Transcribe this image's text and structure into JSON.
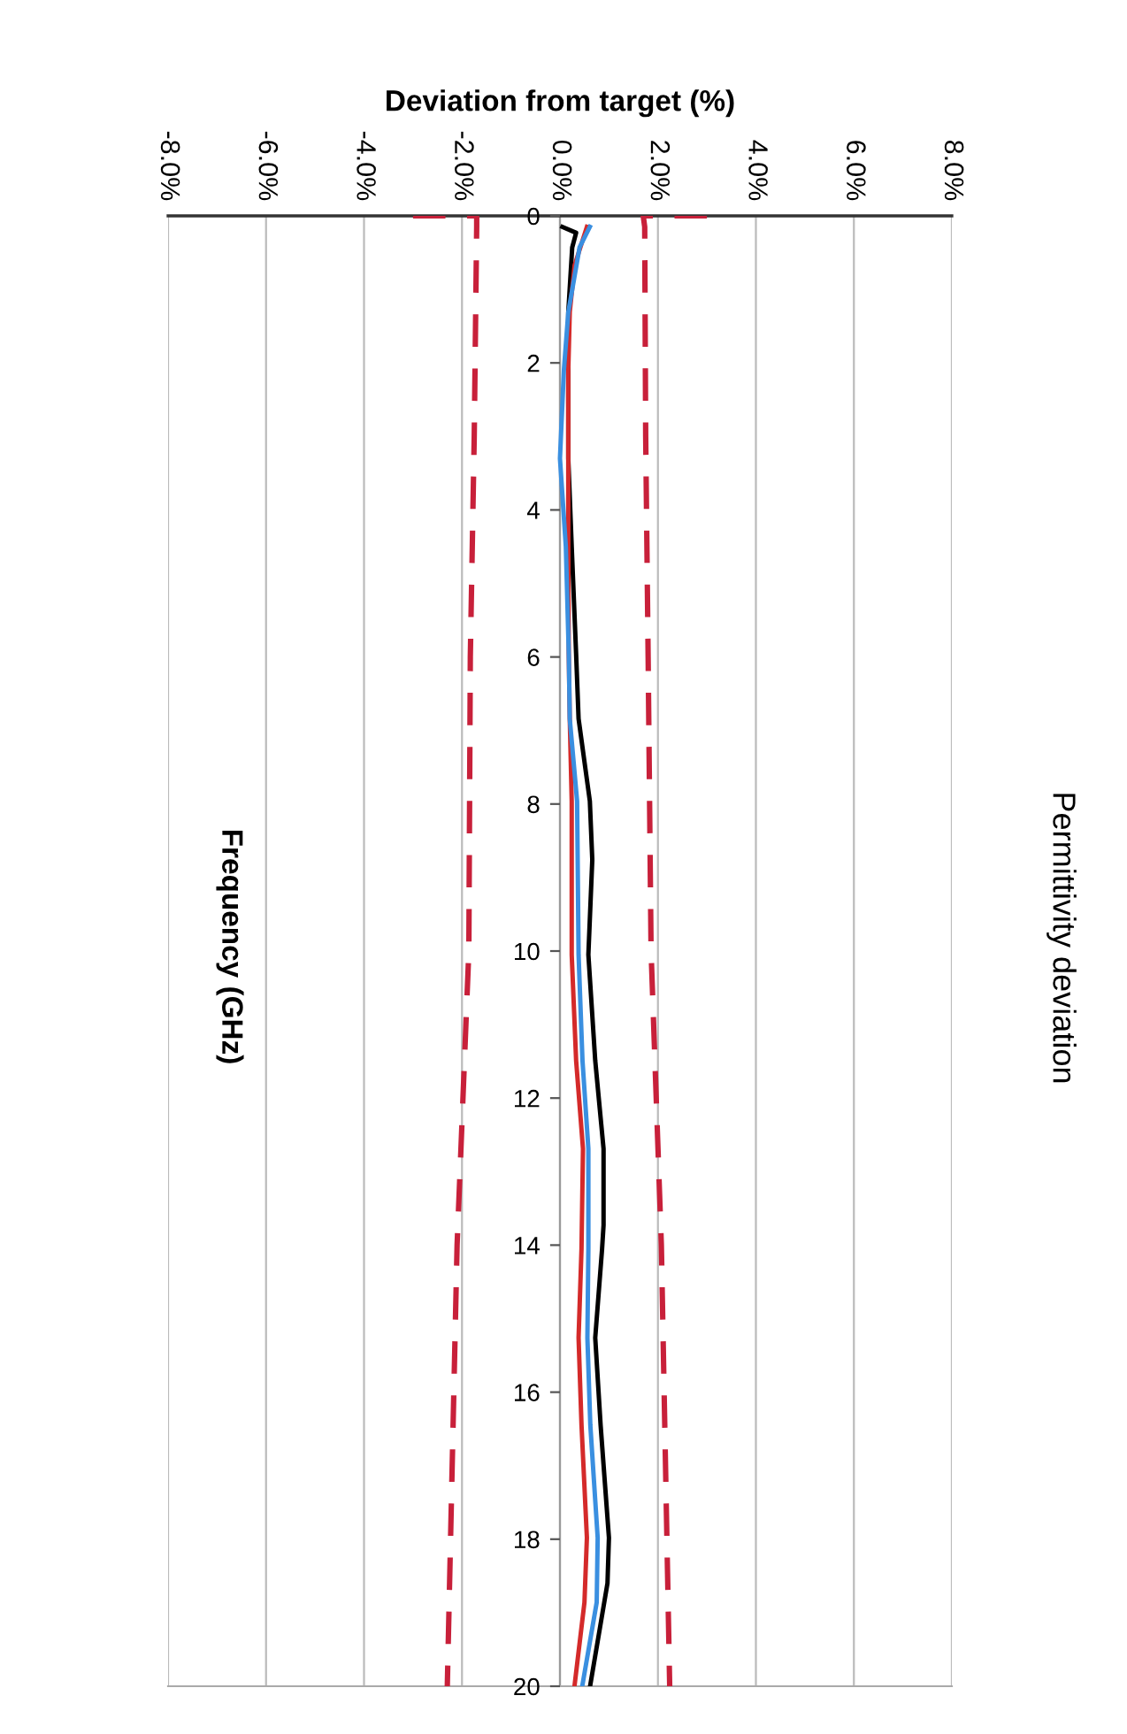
{
  "chart_data": {
    "type": "line",
    "title": "Permittivity deviation",
    "xlabel": "Deviation from target (%)",
    "ylabel": "Frequency (GHz)",
    "xlim": [
      -8,
      8
    ],
    "xticks": [
      {
        "value": -8,
        "label": "-8.0%"
      },
      {
        "value": -6,
        "label": "-6.0%"
      },
      {
        "value": -4,
        "label": "-4.0%"
      },
      {
        "value": -2,
        "label": "-2.0%"
      },
      {
        "value": 0,
        "label": "0.0%"
      },
      {
        "value": 2,
        "label": "2.0%"
      },
      {
        "value": 4,
        "label": "4.0%"
      },
      {
        "value": 6,
        "label": "6.0%"
      },
      {
        "value": 8,
        "label": "8.0%"
      }
    ],
    "ylim": [
      20,
      0
    ],
    "yticks": [
      0,
      2,
      4,
      6,
      8,
      10,
      12,
      14,
      16,
      18,
      20
    ],
    "grid": "x",
    "marker": "none",
    "series": [
      {
        "color": "#c8203a",
        "line_style": "dashed",
        "values": [
          0,
          0,
          0.15,
          3,
          6,
          10,
          14,
          20
        ],
        "x": [
          -3.0,
          -1.7,
          -1.7,
          -1.75,
          -1.83,
          -1.86,
          -2.1,
          -2.3
        ]
      },
      {
        "color": "#c8203a",
        "line_style": "dashed",
        "values": [
          0,
          0,
          0.15,
          3,
          6,
          10,
          14,
          20
        ],
        "x": [
          3.0,
          1.7,
          1.73,
          1.75,
          1.8,
          1.86,
          2.07,
          2.24
        ]
      },
      {
        "color": "#000000",
        "line_style": "solid",
        "values": [
          0.15,
          0.23,
          0.43,
          1.31,
          2.1,
          3.3,
          4.5,
          5.96,
          6.84,
          7.96,
          8.76,
          10.05,
          11.49,
          12.69,
          13.73,
          14.05,
          15.26,
          16.45,
          17.98,
          18.6,
          19.98
        ],
        "x": [
          0.05,
          0.33,
          0.25,
          0.17,
          0.17,
          0.17,
          0.24,
          0.33,
          0.38,
          0.61,
          0.66,
          0.58,
          0.72,
          0.89,
          0.89,
          0.86,
          0.72,
          0.83,
          1.0,
          0.97,
          0.62
        ]
      },
      {
        "color": "#d42a2a",
        "line_style": "solid",
        "values": [
          0.15,
          0.67,
          1.31,
          2.1,
          3.3,
          4.5,
          5.96,
          6.84,
          7.96,
          10.05,
          11.49,
          12.69,
          14.05,
          15.26,
          16.45,
          17.98,
          18.86,
          19.98
        ],
        "x": [
          0.55,
          0.3,
          0.2,
          0.17,
          0.17,
          0.17,
          0.18,
          0.2,
          0.24,
          0.24,
          0.33,
          0.47,
          0.44,
          0.38,
          0.44,
          0.55,
          0.5,
          0.3
        ]
      },
      {
        "color": "#3a8fe0",
        "line_style": "solid",
        "values": [
          0.15,
          0.43,
          1.31,
          2.1,
          3.3,
          4.5,
          5.96,
          6.84,
          7.96,
          10.05,
          11.49,
          12.69,
          14.05,
          15.26,
          16.45,
          17.98,
          18.86,
          19.98
        ],
        "x": [
          0.61,
          0.4,
          0.17,
          0.08,
          0.0,
          0.12,
          0.18,
          0.2,
          0.35,
          0.38,
          0.46,
          0.58,
          0.58,
          0.56,
          0.62,
          0.77,
          0.75,
          0.46
        ]
      }
    ]
  }
}
